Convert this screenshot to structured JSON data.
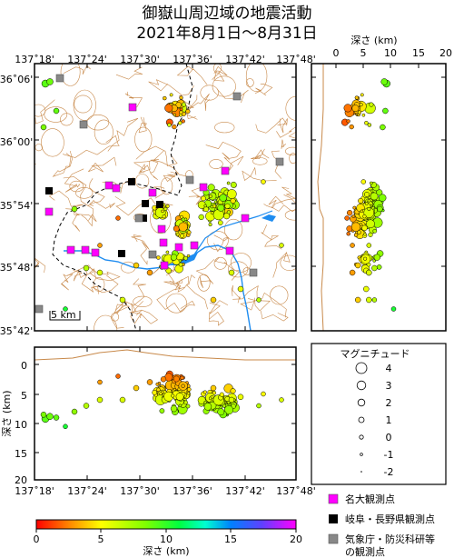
{
  "title": {
    "line1": "御嶽山周辺域の地震活動",
    "line2": "2021年8月1日～8月31日"
  },
  "map": {
    "lon_ticks": [
      "137˚18'",
      "137˚24'",
      "137˚30'",
      "137˚36'",
      "137˚42'",
      "137˚48'"
    ],
    "lat_ticks": [
      "36˚06'",
      "36˚00'",
      "35˚54'",
      "35˚48'",
      "35˚42'"
    ],
    "scale_label": "5 km"
  },
  "depth_axis": {
    "title": "深さ (km)",
    "ticks": [
      "0",
      "5",
      "10",
      "15",
      "20"
    ]
  },
  "cross_section": {
    "ylabel": "深さ (km)",
    "y_ticks": [
      "0",
      "5",
      "10",
      "15",
      "20"
    ],
    "x_ticks": [
      "137˚18'",
      "137˚24'",
      "137˚30'",
      "137˚36'",
      "137˚42'",
      "137˚48'"
    ]
  },
  "magnitude_legend": {
    "title": "マグニチュード",
    "levels": [
      "4",
      "3",
      "2",
      "1",
      "0",
      "-1",
      "-2"
    ]
  },
  "station_legend": [
    {
      "label": "名大観測点",
      "color": "#ff00ff"
    },
    {
      "label": "岐阜・長野県観測点",
      "color": "#000000"
    },
    {
      "label": "気象庁・防災科研等",
      "color": "#888888"
    },
    {
      "label": "の観測点",
      "color": ""
    }
  ],
  "colorbar": {
    "ticks": [
      "0",
      "5",
      "10",
      "15",
      "20"
    ],
    "label": "深さ (km)"
  },
  "colors": {
    "contour": "#c8894a",
    "river": "#1e8cf0",
    "border": "#000000"
  }
}
